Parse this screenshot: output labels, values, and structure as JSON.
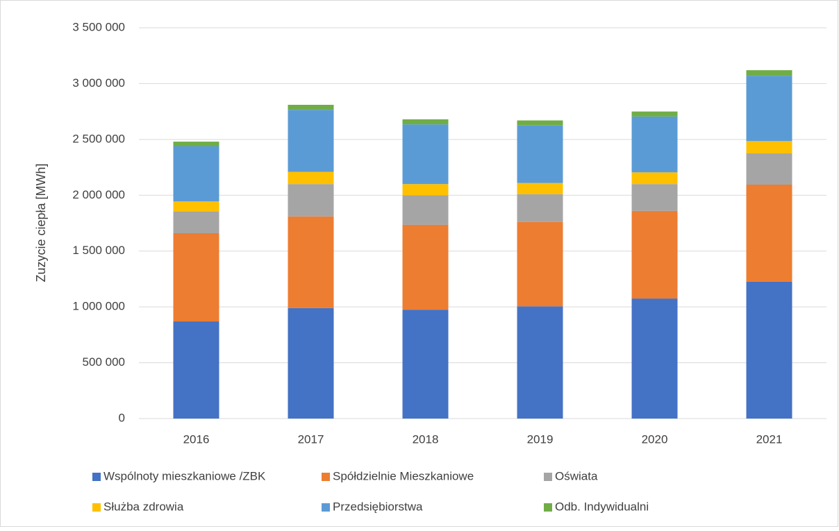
{
  "chart_data": {
    "type": "stacked_bar",
    "y_label": "Zuzycie ciepła  [MWh]",
    "categories": [
      "2016",
      "2017",
      "2018",
      "2019",
      "2020",
      "2021"
    ],
    "series": [
      {
        "name": "Wspólnoty mieszkaniowe /ZBK",
        "color": "#4472c4",
        "values": [
          870000,
          990000,
          975000,
          1005000,
          1075000,
          1225000
        ]
      },
      {
        "name": "Spółdzielnie Mieszkaniowe",
        "color": "#ed7d31",
        "values": [
          790000,
          820000,
          760000,
          755000,
          785000,
          870000
        ]
      },
      {
        "name": "Oświata",
        "color": "#a5a5a5",
        "values": [
          195000,
          290000,
          265000,
          250000,
          240000,
          280000
        ]
      },
      {
        "name": "Służba zdrowia",
        "color": "#ffc000",
        "values": [
          90000,
          110000,
          100000,
          100000,
          105000,
          110000
        ]
      },
      {
        "name": "Przedsiębiorstwa",
        "color": "#5b9bd5",
        "values": [
          495000,
          555000,
          535000,
          515000,
          500000,
          585000
        ]
      },
      {
        "name": "Odb. Indywidualni",
        "color": "#70ad47",
        "values": [
          40000,
          45000,
          45000,
          45000,
          45000,
          50000
        ]
      }
    ],
    "ylim": [
      0,
      3500000
    ],
    "yticks": [
      0,
      {
        "value": 500000,
        "label": "500 000"
      },
      {
        "value": 1000000,
        "label": "1 000 000"
      },
      {
        "value": 1500000,
        "label": "1 500 000"
      },
      {
        "value": 2000000,
        "label": "2 000 000"
      },
      {
        "value": 2500000,
        "label": "2 500 000"
      },
      {
        "value": 3000000,
        "label": "3 000 000"
      },
      {
        "value": 3500000,
        "label": "3 500 000"
      }
    ],
    "grid": true
  }
}
